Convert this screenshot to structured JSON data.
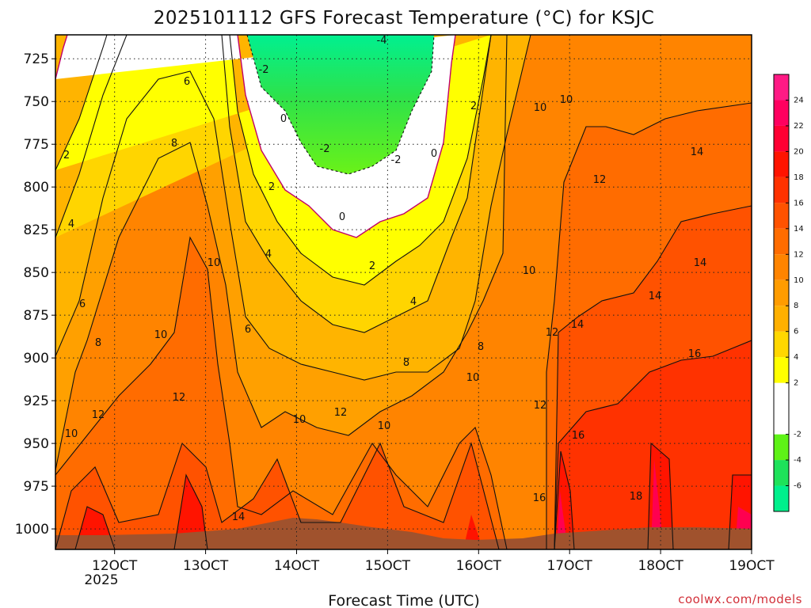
{
  "chart_data": {
    "type": "time-height contour",
    "title": "2025101112 GFS Forecast Temperature (°C) for KSJC",
    "xlabel": "Forecast Time (UTC)",
    "ylabel": "",
    "x_ticks": [
      "12OCT",
      "13OCT",
      "14OCT",
      "15OCT",
      "16OCT",
      "17OCT",
      "18OCT",
      "19OCT"
    ],
    "x_year": "2025",
    "xlim": [
      11.35,
      19.0
    ],
    "y_ticks": [
      725,
      750,
      775,
      800,
      825,
      850,
      875,
      900,
      925,
      950,
      975,
      1000
    ],
    "y_tick_labels": [
      "725",
      "750",
      "775",
      "800",
      "825",
      "850",
      "875",
      "900",
      "925",
      "950",
      "975",
      "1000"
    ],
    "ylim": [
      711,
      1012
    ],
    "grid": true,
    "colorbar": {
      "labels": [
        "24",
        "22",
        "20",
        "18",
        "16",
        "14",
        "12",
        "10",
        "8",
        "6",
        "4",
        "2",
        "-2",
        "-4",
        "-6"
      ],
      "levels": [
        -8,
        -6,
        -4,
        -2,
        2,
        4,
        6,
        8,
        10,
        12,
        14,
        16,
        18,
        20,
        22,
        24,
        26
      ],
      "colors": [
        "#00f08c",
        "#1ee25a",
        "#5ef216",
        "#ffffff",
        "#ffff00",
        "#ffd700",
        "#ffb000",
        "#ff9c00",
        "#ff8400",
        "#ff6c00",
        "#ff5200",
        "#ff3200",
        "#ff1400",
        "#ff0033",
        "#ff005f",
        "#ff1a85"
      ]
    },
    "contour_labels": [
      "-4",
      "-2",
      "-2",
      "-2",
      "0",
      "0",
      "0",
      "2",
      "2",
      "2",
      "2",
      "4",
      "4",
      "4",
      "6",
      "6",
      "6",
      "8",
      "8",
      "8",
      "8",
      "10",
      "10",
      "10",
      "10",
      "10",
      "10",
      "10",
      "10",
      "10",
      "12",
      "12",
      "12",
      "12",
      "12",
      "12",
      "14",
      "14",
      "14",
      "14",
      "14",
      "16",
      "16",
      "16",
      "18"
    ],
    "series": [
      {
        "name": "temperature at 725 hPa (°C)",
        "x": [
          11.35,
          12.0,
          12.5,
          13.0,
          13.5,
          14.0,
          14.5,
          15.0,
          15.5,
          16.0,
          16.5,
          17.0,
          17.5,
          18.0,
          18.5,
          19.0
        ],
        "values": [
          1,
          4,
          6,
          7,
          2,
          -2,
          -5,
          -4,
          -3,
          1,
          7,
          10,
          10,
          11,
          11,
          12
        ]
      },
      {
        "name": "temperature at 850 hPa (°C)",
        "x": [
          11.35,
          12.0,
          12.5,
          13.0,
          13.5,
          14.0,
          14.5,
          15.0,
          15.5,
          16.0,
          16.5,
          17.0,
          17.5,
          18.0,
          18.5,
          19.0
        ],
        "values": [
          6,
          8,
          11,
          12,
          7,
          4,
          1,
          2,
          4,
          7,
          10,
          12,
          13,
          14,
          14,
          15
        ]
      },
      {
        "name": "temperature at 1000 hPa (°C)",
        "x": [
          11.35,
          12.0,
          12.5,
          13.0,
          13.5,
          14.0,
          14.5,
          15.0,
          15.5,
          16.0,
          16.5,
          17.0,
          17.5,
          18.0,
          18.5,
          19.0
        ],
        "values": [
          14,
          17,
          14,
          19,
          14,
          14,
          13,
          14,
          12,
          17,
          12,
          20,
          16,
          22,
          17,
          22
        ]
      }
    ]
  },
  "credit": "coolwx.com/models"
}
